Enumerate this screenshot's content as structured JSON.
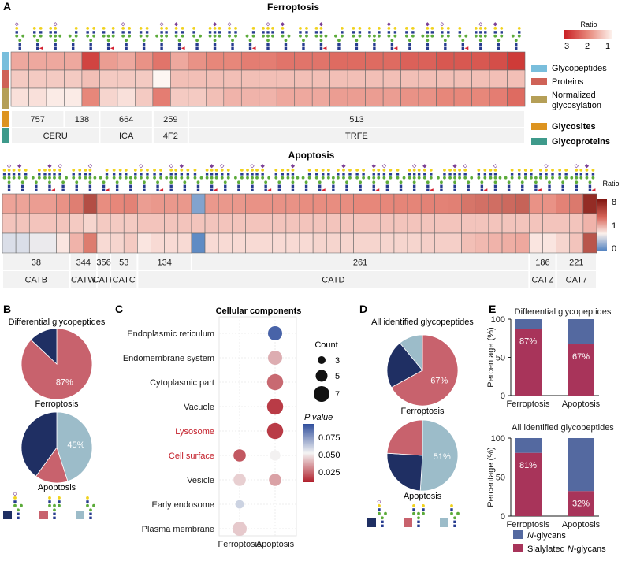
{
  "panels": {
    "a": "A",
    "b": "B",
    "c": "C",
    "d": "D",
    "e": "E"
  },
  "ferroptosis_heatmap": {
    "title": "Ferroptosis",
    "rows": 3,
    "cols": 29,
    "values": [
      [
        1.7,
        1.7,
        1.7,
        1.7,
        2.7,
        1.8,
        1.7,
        1.9,
        2.2,
        1.7,
        1.9,
        2.0,
        2.0,
        2.1,
        2.1,
        2.2,
        2.2,
        2.2,
        2.3,
        2.3,
        2.3,
        2.3,
        2.4,
        2.4,
        2.5,
        2.5,
        2.5,
        2.6,
        2.8
      ],
      [
        1.4,
        1.4,
        1.4,
        1.4,
        1.5,
        1.4,
        1.4,
        1.4,
        1.0,
        1.5,
        1.5,
        1.5,
        1.5,
        1.5,
        1.5,
        1.5,
        1.5,
        1.5,
        1.5,
        1.5,
        1.5,
        1.5,
        1.5,
        1.5,
        1.5,
        1.5,
        1.5,
        1.5,
        1.5
      ],
      [
        1.2,
        1.2,
        1.1,
        1.1,
        2.0,
        1.3,
        1.2,
        1.4,
        2.1,
        1.4,
        1.4,
        1.5,
        1.6,
        1.6,
        1.6,
        1.7,
        1.7,
        1.7,
        1.8,
        1.8,
        1.8,
        1.8,
        1.9,
        1.9,
        2.0,
        2.0,
        2.0,
        2.1,
        2.3
      ]
    ],
    "glycosites": [
      {
        "label": "757",
        "start": 0,
        "span": 3
      },
      {
        "label": "138",
        "start": 3,
        "span": 2
      },
      {
        "label": "664",
        "start": 5,
        "span": 3
      },
      {
        "label": "259",
        "start": 8,
        "span": 2
      },
      {
        "label": "513",
        "start": 10,
        "span": 19
      }
    ],
    "glycoproteins": [
      {
        "label": "CERU",
        "start": 0,
        "span": 5
      },
      {
        "label": "ICA",
        "start": 5,
        "span": 3
      },
      {
        "label": "4F2",
        "start": 8,
        "span": 2
      },
      {
        "label": "TRFE",
        "start": 10,
        "span": 19
      }
    ],
    "colorbar": {
      "title": "Ratio",
      "ticks": [
        "3",
        "2",
        "1"
      ]
    }
  },
  "apoptosis_heatmap": {
    "title": "Apoptosis",
    "rows": 3,
    "cols": 44,
    "values": [
      [
        2.5,
        2.5,
        2.6,
        2.6,
        2.8,
        3.4,
        5.5,
        2.9,
        3.0,
        3.2,
        2.6,
        2.7,
        2.7,
        2.7,
        0.3,
        2.7,
        2.7,
        2.7,
        2.8,
        2.8,
        2.8,
        2.8,
        2.9,
        2.9,
        2.9,
        2.9,
        3.0,
        3.0,
        3.0,
        3.1,
        3.1,
        3.2,
        3.2,
        3.3,
        3.8,
        4.0,
        4.1,
        4.3,
        4.6,
        2.8,
        2.8,
        3.2,
        3.6,
        7.0
      ],
      [
        1.9,
        1.9,
        1.9,
        1.9,
        1.9,
        1.8,
        1.6,
        1.8,
        1.8,
        1.8,
        1.9,
        1.9,
        1.9,
        1.9,
        1.9,
        1.9,
        1.9,
        1.9,
        1.9,
        1.9,
        1.9,
        1.9,
        1.9,
        1.9,
        1.9,
        1.9,
        1.9,
        1.9,
        1.9,
        1.9,
        1.9,
        1.9,
        1.9,
        1.9,
        1.9,
        1.9,
        1.9,
        1.9,
        1.9,
        1.9,
        1.9,
        1.9,
        1.9,
        2.2
      ],
      [
        0.8,
        0.8,
        0.9,
        0.9,
        1.3,
        2.2,
        3.5,
        1.5,
        1.6,
        1.8,
        1.3,
        1.5,
        1.5,
        1.5,
        0.1,
        1.5,
        1.5,
        1.5,
        1.5,
        1.5,
        1.5,
        1.5,
        1.5,
        1.6,
        1.6,
        1.6,
        1.6,
        1.6,
        1.6,
        1.6,
        1.6,
        1.7,
        1.7,
        1.7,
        2.0,
        2.1,
        2.2,
        2.3,
        2.4,
        1.3,
        1.3,
        1.6,
        1.9,
        5.2
      ]
    ],
    "glycosites": [
      {
        "label": "38",
        "start": 0,
        "span": 5
      },
      {
        "label": "344",
        "start": 5,
        "span": 2
      },
      {
        "label": "356",
        "start": 7,
        "span": 1
      },
      {
        "label": "53",
        "start": 8,
        "span": 2
      },
      {
        "label": "134",
        "start": 10,
        "span": 4
      },
      {
        "label": "261",
        "start": 14,
        "span": 25
      },
      {
        "label": "186",
        "start": 39,
        "span": 2
      },
      {
        "label": "221",
        "start": 41,
        "span": 3
      }
    ],
    "glycoproteins": [
      {
        "label": "CATB",
        "start": 0,
        "span": 5
      },
      {
        "label": "CATW",
        "start": 5,
        "span": 2
      },
      {
        "label": "CATF",
        "start": 7,
        "span": 1
      },
      {
        "label": "CATC",
        "start": 8,
        "span": 2
      },
      {
        "label": "CATD",
        "start": 10,
        "span": 29
      },
      {
        "label": "CATZ",
        "start": 39,
        "span": 2
      },
      {
        "label": "CAT7",
        "start": 41,
        "span": 3
      }
    ],
    "colorbar": {
      "title": "Ratio",
      "ticks": [
        "8",
        "1",
        "0"
      ]
    }
  },
  "row_legend": {
    "glycopeptides": "Glycopeptides",
    "proteins": "Proteins",
    "normalized": "Normalized glycosylation",
    "glycosites": "Glycosites",
    "glycoproteins": "Glycoproteins"
  },
  "colors": {
    "glycopeptides": "#79bedc",
    "proteins": "#cf6257",
    "normalized": "#b59f57",
    "glycosites": "#dd9420",
    "glycoproteins": "#3e9a8b",
    "navy": "#1f2f63",
    "rose": "#c8626d",
    "lightblue": "#9cbcc9",
    "e_blue": "#5469a0",
    "e_crimson": "#a8345a"
  },
  "chart_data": [
    {
      "type": "pie",
      "panel": "B",
      "title": "Differential glycopeptides",
      "charts": [
        {
          "label": "Ferroptosis",
          "slices": [
            {
              "name": "rose",
              "value": 87
            },
            {
              "name": "navy",
              "value": 13
            }
          ],
          "labels": [
            "87%"
          ]
        },
        {
          "label": "Apoptosis",
          "slices": [
            {
              "name": "lightblue",
              "value": 45
            },
            {
              "name": "rose",
              "value": 15
            },
            {
              "name": "navy",
              "value": 40
            }
          ],
          "labels": [
            "45%"
          ]
        }
      ]
    },
    {
      "type": "scatter",
      "panel": "C",
      "title": "Cellular components",
      "x": [
        "Ferroptosis",
        "Apoptosis"
      ],
      "categories": [
        "Endoplasmic reticulum",
        "Endomembrane system",
        "Cytoplasmic part",
        "Vacuole",
        "Lysosome",
        "Cell surface",
        "Vesicle",
        "Early endosome",
        "Plasma membrane"
      ],
      "highlighted": [
        "Lysosome",
        "Cell surface"
      ],
      "points": [
        {
          "x": "Apoptosis",
          "y": "Endoplasmic reticulum",
          "count": 5,
          "p": 0.085
        },
        {
          "x": "Apoptosis",
          "y": "Endomembrane system",
          "count": 5,
          "p": 0.04
        },
        {
          "x": "Apoptosis",
          "y": "Cytoplasmic part",
          "count": 6,
          "p": 0.028
        },
        {
          "x": "Apoptosis",
          "y": "Vacuole",
          "count": 6,
          "p": 0.02
        },
        {
          "x": "Apoptosis",
          "y": "Lysosome",
          "count": 6,
          "p": 0.02
        },
        {
          "x": "Ferroptosis",
          "y": "Cell surface",
          "count": 4,
          "p": 0.025
        },
        {
          "x": "Apoptosis",
          "y": "Cell surface",
          "count": 3,
          "p": 0.052
        },
        {
          "x": "Ferroptosis",
          "y": "Vesicle",
          "count": 4,
          "p": 0.046
        },
        {
          "x": "Apoptosis",
          "y": "Vesicle",
          "count": 4,
          "p": 0.038
        },
        {
          "x": "Ferroptosis",
          "y": "Early endosome",
          "count": 2,
          "p": 0.06
        },
        {
          "x": "Ferroptosis",
          "y": "Plasma membrane",
          "count": 5,
          "p": 0.045
        }
      ],
      "size_legend": {
        "title": "Count",
        "values": [
          "3",
          "5",
          "7"
        ]
      },
      "color_legend": {
        "title": "P value",
        "ticks": [
          "0.075",
          "0.050",
          "0.025"
        ],
        "range": [
          0.015,
          0.09
        ]
      }
    },
    {
      "type": "pie",
      "panel": "D",
      "title": "All identified glycopeptides",
      "charts": [
        {
          "label": "Ferroptosis",
          "slices": [
            {
              "name": "rose",
              "value": 67
            },
            {
              "name": "navy",
              "value": 22
            },
            {
              "name": "lightblue",
              "value": 11
            }
          ],
          "labels": [
            "67%"
          ]
        },
        {
          "label": "Apoptosis",
          "slices": [
            {
              "name": "lightblue",
              "value": 51
            },
            {
              "name": "navy",
              "value": 25
            },
            {
              "name": "rose",
              "value": 24
            }
          ],
          "labels": [
            "51%"
          ]
        }
      ]
    },
    {
      "type": "bar",
      "panel": "E",
      "ylabel": "Percentage (%)",
      "ylim": [
        0,
        100
      ],
      "yticks": [
        "0",
        "50",
        "100"
      ],
      "categories": [
        "Ferroptosis",
        "Apoptosis"
      ],
      "charts": [
        {
          "title": "Differential glycopeptides",
          "sialylated": [
            87,
            67
          ],
          "labels": [
            "87%",
            "67%"
          ]
        },
        {
          "title": "All identified glycopeptides",
          "sialylated": [
            81,
            32
          ],
          "labels": [
            "81%",
            "32%"
          ]
        }
      ],
      "legend": [
        "N-glycans",
        "Sialylated N-glycans"
      ]
    }
  ]
}
